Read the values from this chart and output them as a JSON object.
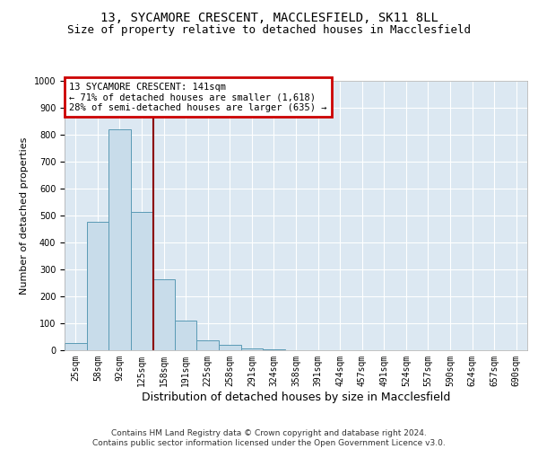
{
  "title1": "13, SYCAMORE CRESCENT, MACCLESFIELD, SK11 8LL",
  "title2": "Size of property relative to detached houses in Macclesfield",
  "xlabel": "Distribution of detached houses by size in Macclesfield",
  "ylabel": "Number of detached properties",
  "footnote": "Contains HM Land Registry data © Crown copyright and database right 2024.\nContains public sector information licensed under the Open Government Licence v3.0.",
  "bar_labels": [
    "25sqm",
    "58sqm",
    "92sqm",
    "125sqm",
    "158sqm",
    "191sqm",
    "225sqm",
    "258sqm",
    "291sqm",
    "324sqm",
    "358sqm",
    "391sqm",
    "424sqm",
    "457sqm",
    "491sqm",
    "524sqm",
    "557sqm",
    "590sqm",
    "624sqm",
    "657sqm",
    "690sqm"
  ],
  "bar_values": [
    28,
    478,
    820,
    515,
    265,
    110,
    37,
    20,
    7,
    3,
    0,
    0,
    0,
    0,
    0,
    0,
    0,
    0,
    0,
    0,
    0
  ],
  "bar_color": "#c8dcea",
  "bar_edge_color": "#5a9ab5",
  "annotation_box_text": "13 SYCAMORE CRESCENT: 141sqm\n← 71% of detached houses are smaller (1,618)\n28% of semi-detached houses are larger (635) →",
  "annotation_box_color": "#cc0000",
  "ylim": [
    0,
    1000
  ],
  "yticks": [
    0,
    100,
    200,
    300,
    400,
    500,
    600,
    700,
    800,
    900,
    1000
  ],
  "grid_color": "#ffffff",
  "bg_color": "#dce8f2",
  "title1_fontsize": 10,
  "title2_fontsize": 9,
  "ylabel_fontsize": 8,
  "xlabel_fontsize": 9,
  "footnote_fontsize": 6.5,
  "annot_fontsize": 7.5,
  "tick_fontsize": 7
}
